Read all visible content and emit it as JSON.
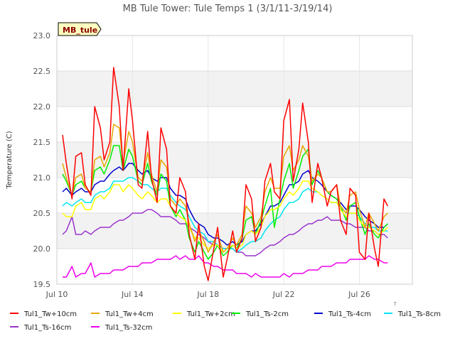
{
  "chart_data": {
    "type": "line",
    "title": "MB Tule Tower: Tule Temps 1 (3/1/11-3/19/14)",
    "ylabel": "Temperature (C)",
    "xlabel": "",
    "badge": "MB_tule",
    "corner_mark": "T",
    "ylim": [
      19.5,
      23.0
    ],
    "yticks": [
      "19.5",
      "20.0",
      "20.5",
      "21.0",
      "21.5",
      "22.0",
      "22.5",
      "23.0"
    ],
    "xlim_days": [
      10,
      28.8
    ],
    "xticks": [
      {
        "day": 10,
        "label": "Jul 10"
      },
      {
        "day": 14,
        "label": "Jul 14"
      },
      {
        "day": 18,
        "label": "Jul 18"
      },
      {
        "day": 22,
        "label": "Jul 22"
      },
      {
        "day": 26,
        "label": "Jul 26"
      }
    ],
    "grid": true,
    "legend_position": "bottom",
    "x_unit": "day of July",
    "x": [
      10.3,
      10.5,
      10.8,
      11.0,
      11.3,
      11.5,
      11.8,
      12.0,
      12.3,
      12.5,
      12.8,
      13.0,
      13.3,
      13.5,
      13.8,
      14.0,
      14.3,
      14.5,
      14.8,
      15.0,
      15.3,
      15.5,
      15.8,
      16.0,
      16.3,
      16.5,
      16.8,
      17.0,
      17.3,
      17.5,
      17.8,
      18.0,
      18.3,
      18.5,
      18.8,
      19.0,
      19.3,
      19.5,
      19.8,
      20.0,
      20.3,
      20.5,
      20.8,
      21.0,
      21.3,
      21.5,
      21.8,
      22.0,
      22.3,
      22.5,
      22.8,
      23.0,
      23.3,
      23.5,
      23.8,
      24.0,
      24.3,
      24.5,
      24.8,
      25.0,
      25.3,
      25.5,
      25.8,
      26.0,
      26.3,
      26.5,
      26.8,
      27.0,
      27.3,
      27.5
    ],
    "series": [
      {
        "name": "Tul1_Tw+10cm",
        "color": "#ff0000",
        "values": [
          21.6,
          21.2,
          20.7,
          21.3,
          21.35,
          20.9,
          20.75,
          22.0,
          21.7,
          21.25,
          21.5,
          22.55,
          22.0,
          21.1,
          22.25,
          21.8,
          20.9,
          20.85,
          21.65,
          21.0,
          20.65,
          21.7,
          21.4,
          20.6,
          20.5,
          21.0,
          20.8,
          20.2,
          19.85,
          20.35,
          19.75,
          19.55,
          20.0,
          20.3,
          19.6,
          19.85,
          20.25,
          19.95,
          20.15,
          20.9,
          20.7,
          20.1,
          20.3,
          20.95,
          21.2,
          20.8,
          20.7,
          21.8,
          22.1,
          20.95,
          21.4,
          22.05,
          21.5,
          20.65,
          21.2,
          21.0,
          20.6,
          20.8,
          20.9,
          20.4,
          20.2,
          20.85,
          20.75,
          19.95,
          19.85,
          20.5,
          20.0,
          19.75,
          20.7,
          20.6
        ]
      },
      {
        "name": "Tul1_Tw+4cm",
        "color": "#e6a800",
        "values": [
          21.2,
          21.0,
          20.75,
          21.0,
          21.05,
          20.85,
          20.8,
          21.25,
          21.3,
          21.15,
          21.35,
          21.75,
          21.7,
          21.2,
          21.65,
          21.5,
          21.0,
          20.95,
          21.35,
          21.05,
          20.8,
          21.25,
          21.15,
          20.7,
          20.6,
          20.7,
          20.6,
          20.35,
          20.1,
          20.25,
          20.1,
          19.95,
          20.1,
          20.2,
          19.95,
          20.0,
          20.15,
          20.05,
          20.2,
          20.6,
          20.5,
          20.3,
          20.45,
          20.8,
          21.0,
          20.85,
          20.85,
          21.3,
          21.45,
          21.1,
          21.25,
          21.45,
          21.3,
          20.95,
          21.05,
          21.0,
          20.8,
          20.8,
          20.9,
          20.6,
          20.5,
          20.75,
          20.8,
          20.55,
          20.3,
          20.5,
          20.35,
          20.25,
          20.45,
          20.5
        ]
      },
      {
        "name": "Tul1_Tw+2cm",
        "color": "#ffff00",
        "values": [
          20.5,
          20.45,
          20.45,
          20.6,
          20.65,
          20.55,
          20.55,
          20.7,
          20.75,
          20.7,
          20.8,
          20.9,
          20.9,
          20.8,
          20.9,
          20.85,
          20.75,
          20.7,
          20.8,
          20.75,
          20.65,
          20.7,
          20.7,
          20.6,
          20.5,
          20.45,
          20.4,
          20.3,
          20.15,
          20.15,
          20.05,
          20.0,
          20.05,
          20.05,
          19.95,
          20.0,
          20.05,
          20.0,
          20.05,
          20.2,
          20.25,
          20.2,
          20.3,
          20.45,
          20.55,
          20.55,
          20.6,
          20.7,
          20.8,
          20.75,
          20.85,
          20.95,
          20.95,
          20.85,
          20.8,
          20.75,
          20.7,
          20.65,
          20.65,
          20.55,
          20.45,
          20.5,
          20.5,
          20.4,
          20.3,
          20.3,
          20.25,
          20.2,
          20.25,
          20.3
        ]
      },
      {
        "name": "Tul1_Ts-2cm",
        "color": "#00ee00",
        "values": [
          21.05,
          20.95,
          20.75,
          20.9,
          20.95,
          20.85,
          20.8,
          21.1,
          21.15,
          21.05,
          21.25,
          21.45,
          21.45,
          21.1,
          21.4,
          21.3,
          20.95,
          20.9,
          21.2,
          20.95,
          20.75,
          21.05,
          20.95,
          20.6,
          20.45,
          20.55,
          20.4,
          20.15,
          19.95,
          20.1,
          19.95,
          19.85,
          19.95,
          20.05,
          19.9,
          19.95,
          20.05,
          20.0,
          20.15,
          20.4,
          20.45,
          20.2,
          20.4,
          20.6,
          20.85,
          20.3,
          20.7,
          20.95,
          21.2,
          20.85,
          21.1,
          21.3,
          21.4,
          20.9,
          21.1,
          21.0,
          20.8,
          20.75,
          20.7,
          20.6,
          20.4,
          20.6,
          20.65,
          20.45,
          20.2,
          20.35,
          20.2,
          20.15,
          20.3,
          20.35
        ]
      },
      {
        "name": "Tul1_Ts-4cm",
        "color": "#0000cc",
        "values": [
          20.8,
          20.85,
          20.75,
          20.8,
          20.85,
          20.8,
          20.8,
          20.9,
          20.95,
          20.95,
          21.05,
          21.1,
          21.15,
          21.1,
          21.2,
          21.2,
          21.1,
          21.05,
          21.1,
          21.0,
          20.95,
          21.0,
          21.0,
          20.85,
          20.75,
          20.75,
          20.7,
          20.55,
          20.4,
          20.35,
          20.3,
          20.2,
          20.15,
          20.15,
          20.1,
          20.05,
          20.1,
          20.05,
          20.1,
          20.2,
          20.25,
          20.25,
          20.35,
          20.45,
          20.6,
          20.6,
          20.65,
          20.75,
          20.9,
          20.9,
          20.95,
          21.05,
          21.1,
          21.0,
          20.95,
          20.9,
          20.8,
          20.75,
          20.7,
          20.65,
          20.55,
          20.6,
          20.6,
          20.55,
          20.45,
          20.4,
          20.35,
          20.3,
          20.3,
          20.35
        ]
      },
      {
        "name": "Tul1_Ts-8cm",
        "color": "#00e5ee",
        "values": [
          20.6,
          20.65,
          20.6,
          20.65,
          20.7,
          20.65,
          20.65,
          20.75,
          20.8,
          20.8,
          20.85,
          20.95,
          20.95,
          20.95,
          21.0,
          21.0,
          20.95,
          20.9,
          20.9,
          20.85,
          20.8,
          20.85,
          20.85,
          20.75,
          20.65,
          20.6,
          20.55,
          20.45,
          20.3,
          20.25,
          20.2,
          20.1,
          20.1,
          20.05,
          20.0,
          20.0,
          20.0,
          19.95,
          20.0,
          20.05,
          20.1,
          20.1,
          20.15,
          20.25,
          20.35,
          20.4,
          20.45,
          20.55,
          20.65,
          20.65,
          20.7,
          20.8,
          20.85,
          20.8,
          20.8,
          20.75,
          20.7,
          20.65,
          20.65,
          20.6,
          20.5,
          20.5,
          20.5,
          20.45,
          20.35,
          20.3,
          20.3,
          20.25,
          20.25,
          20.25
        ]
      },
      {
        "name": "Tul1_Ts-16cm",
        "color": "#9933cc",
        "values": [
          20.2,
          20.25,
          20.45,
          20.2,
          20.2,
          20.25,
          20.2,
          20.25,
          20.3,
          20.3,
          20.3,
          20.35,
          20.4,
          20.4,
          20.45,
          20.5,
          20.5,
          20.5,
          20.55,
          20.55,
          20.5,
          20.45,
          20.45,
          20.45,
          20.4,
          20.35,
          20.35,
          20.3,
          20.25,
          20.2,
          20.15,
          20.1,
          20.05,
          20.05,
          20.0,
          20.0,
          20.0,
          19.95,
          19.95,
          19.9,
          19.9,
          19.9,
          19.95,
          20.0,
          20.05,
          20.05,
          20.1,
          20.15,
          20.2,
          20.2,
          20.25,
          20.3,
          20.35,
          20.35,
          20.4,
          20.4,
          20.45,
          20.4,
          20.4,
          20.4,
          20.35,
          20.35,
          20.3,
          20.3,
          20.3,
          20.25,
          20.25,
          20.2,
          20.2,
          20.15
        ]
      },
      {
        "name": "Tul1_Ts-32cm",
        "color": "#ee00ee",
        "values": [
          19.6,
          19.6,
          19.75,
          19.6,
          19.65,
          19.65,
          19.8,
          19.6,
          19.65,
          19.65,
          19.65,
          19.7,
          19.7,
          19.7,
          19.75,
          19.75,
          19.75,
          19.8,
          19.8,
          19.8,
          19.85,
          19.85,
          19.85,
          19.85,
          19.9,
          19.85,
          19.9,
          19.85,
          19.85,
          19.9,
          19.8,
          19.8,
          19.75,
          19.75,
          19.7,
          19.7,
          19.7,
          19.65,
          19.65,
          19.65,
          19.6,
          19.65,
          19.6,
          19.6,
          19.6,
          19.6,
          19.6,
          19.65,
          19.6,
          19.65,
          19.65,
          19.65,
          19.7,
          19.7,
          19.7,
          19.75,
          19.75,
          19.75,
          19.8,
          19.8,
          19.8,
          19.85,
          19.85,
          19.85,
          19.85,
          19.9,
          19.85,
          19.85,
          19.8,
          19.8
        ]
      }
    ]
  }
}
